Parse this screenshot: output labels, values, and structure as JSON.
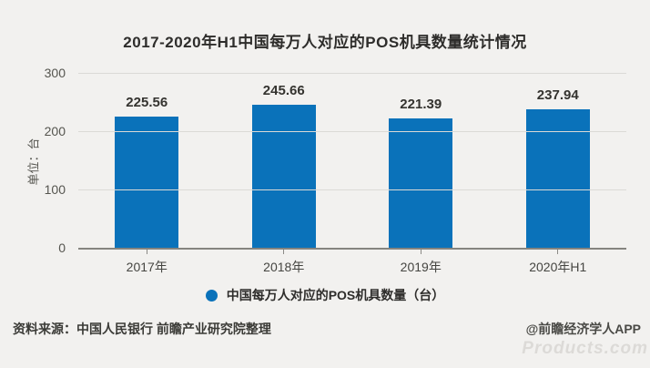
{
  "chart_data": {
    "type": "bar",
    "title": "2017-2020年H1中国每万人对应的POS机具数量统计情况",
    "categories": [
      "2017年",
      "2018年",
      "2019年",
      "2020年H1"
    ],
    "values": [
      225.56,
      245.66,
      221.39,
      237.94
    ],
    "value_labels": [
      "225.56",
      "245.66",
      "221.39",
      "237.94"
    ],
    "xlabel": "",
    "ylabel": "单位：台",
    "ylim": [
      0,
      300
    ],
    "yticks": [
      0,
      100,
      200,
      300
    ],
    "grid": true,
    "legend": [
      "中国每万人对应的POS机具数量（台）"
    ],
    "legend_position": "bottom",
    "bar_color": "#0a72ba"
  },
  "footer": {
    "source": "资料来源：中国人民银行 前瞻产业研究院整理",
    "brand": "@前瞻经济学人APP",
    "watermark": "Products.com"
  },
  "colors": {
    "bar": "#0a72ba",
    "background": "#f2f1ef",
    "gridline": "#dbdad6",
    "axis": "#85847f"
  }
}
